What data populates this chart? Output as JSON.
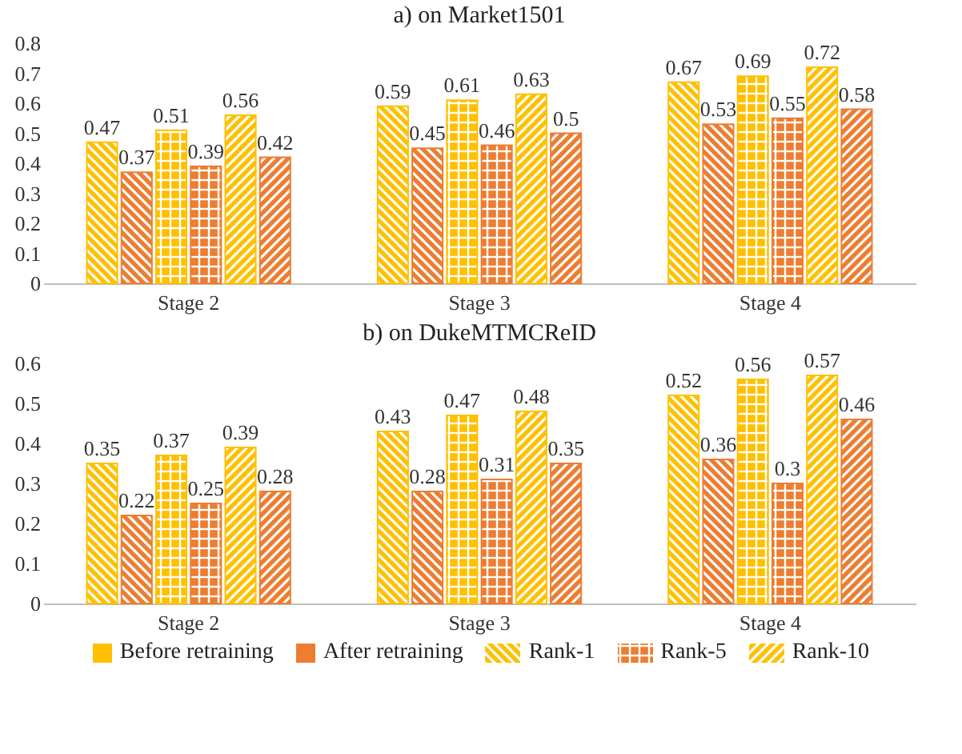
{
  "chart_data": [
    {
      "type": "bar",
      "title": "a) on Market1501",
      "categories": [
        "Stage 2",
        "Stage 3",
        "Stage 4"
      ],
      "series": [
        {
          "color": "#ffc000",
          "values": [
            0.47,
            0.59,
            0.67
          ]
        },
        {
          "color": "#ed7d31",
          "values": [
            0.37,
            0.45,
            0.53
          ]
        },
        {
          "color": "#ffc000",
          "values": [
            0.51,
            0.61,
            0.69
          ]
        },
        {
          "color": "#ed7d31",
          "values": [
            0.39,
            0.46,
            0.55
          ]
        },
        {
          "color": "#ffc000",
          "values": [
            0.56,
            0.63,
            0.72
          ]
        },
        {
          "color": "#ed7d31",
          "values": [
            0.42,
            0.5,
            0.58
          ]
        }
      ],
      "ylim": [
        0,
        0.8
      ],
      "yticks": [
        0,
        0.1,
        0.2,
        0.3,
        0.4,
        0.5,
        0.6,
        0.7,
        0.8
      ],
      "data_labels": true
    },
    {
      "type": "bar",
      "title": "b) on DukeMTMCReID",
      "categories": [
        "Stage 2",
        "Stage 3",
        "Stage 4"
      ],
      "series": [
        {
          "color": "#ffc000",
          "values": [
            0.35,
            0.43,
            0.52
          ]
        },
        {
          "color": "#ed7d31",
          "values": [
            0.22,
            0.28,
            0.36
          ]
        },
        {
          "color": "#ffc000",
          "values": [
            0.37,
            0.47,
            0.56
          ]
        },
        {
          "color": "#ed7d31",
          "values": [
            0.25,
            0.31,
            0.3
          ]
        },
        {
          "color": "#ffc000",
          "values": [
            0.39,
            0.48,
            0.57
          ]
        },
        {
          "color": "#ed7d31",
          "values": [
            0.28,
            0.35,
            0.46
          ]
        }
      ],
      "ylim": [
        0,
        0.6
      ],
      "yticks": [
        0,
        0.1,
        0.2,
        0.3,
        0.4,
        0.5,
        0.6
      ],
      "data_labels": true,
      "annotations": [
        "Before retraining",
        "After retraining",
        "Rank-1",
        "Rank-5",
        "Rank-10"
      ]
    }
  ]
}
